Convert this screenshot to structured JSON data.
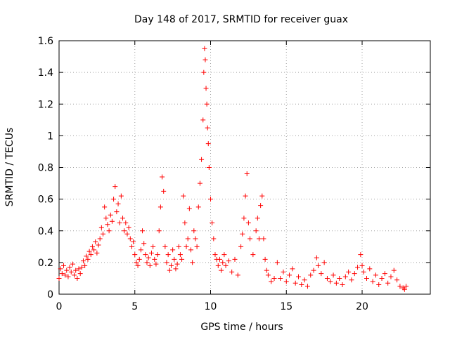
{
  "chart_data": {
    "type": "scatter",
    "title": "Day 148 of 2017, SRMTID for receiver guax",
    "xlabel": "GPS time / hours",
    "ylabel": "SRMTID / TECUs",
    "xlim": [
      0,
      24.5
    ],
    "ylim": [
      0,
      1.6
    ],
    "xticks": [
      0,
      5,
      10,
      15,
      20
    ],
    "xtick_labels": [
      "0",
      "5",
      "10",
      "15",
      "20"
    ],
    "yticks": [
      0,
      0.2,
      0.4,
      0.6,
      0.8,
      1,
      1.2,
      1.4,
      1.6
    ],
    "ytick_labels": [
      "0",
      "0.2",
      "0.4",
      "0.6",
      "0.8",
      "1",
      "1.2",
      "1.4",
      "1.6"
    ],
    "grid": true,
    "marker": "+",
    "color": "#ff0000",
    "series": [
      {
        "name": "SRMTID",
        "points": [
          [
            0.0,
            0.1
          ],
          [
            0.1,
            0.16
          ],
          [
            0.2,
            0.13
          ],
          [
            0.3,
            0.18
          ],
          [
            0.4,
            0.12
          ],
          [
            0.5,
            0.15
          ],
          [
            0.6,
            0.11
          ],
          [
            0.7,
            0.17
          ],
          [
            0.8,
            0.14
          ],
          [
            0.9,
            0.19
          ],
          [
            1.0,
            0.12
          ],
          [
            1.1,
            0.15
          ],
          [
            1.2,
            0.1
          ],
          [
            1.3,
            0.16
          ],
          [
            1.4,
            0.13
          ],
          [
            1.5,
            0.17
          ],
          [
            1.6,
            0.21
          ],
          [
            1.7,
            0.18
          ],
          [
            1.8,
            0.24
          ],
          [
            1.9,
            0.22
          ],
          [
            2.0,
            0.27
          ],
          [
            2.1,
            0.25
          ],
          [
            2.2,
            0.3
          ],
          [
            2.3,
            0.28
          ],
          [
            2.4,
            0.33
          ],
          [
            2.5,
            0.26
          ],
          [
            2.6,
            0.31
          ],
          [
            2.7,
            0.35
          ],
          [
            2.8,
            0.42
          ],
          [
            2.9,
            0.38
          ],
          [
            3.0,
            0.55
          ],
          [
            3.1,
            0.48
          ],
          [
            3.2,
            0.44
          ],
          [
            3.3,
            0.4
          ],
          [
            3.4,
            0.5
          ],
          [
            3.5,
            0.46
          ],
          [
            3.6,
            0.6
          ],
          [
            3.7,
            0.68
          ],
          [
            3.8,
            0.52
          ],
          [
            3.9,
            0.57
          ],
          [
            4.0,
            0.45
          ],
          [
            4.1,
            0.62
          ],
          [
            4.2,
            0.48
          ],
          [
            4.3,
            0.4
          ],
          [
            4.4,
            0.45
          ],
          [
            4.5,
            0.38
          ],
          [
            4.6,
            0.42
          ],
          [
            4.7,
            0.35
          ],
          [
            4.8,
            0.3
          ],
          [
            4.9,
            0.33
          ],
          [
            5.0,
            0.25
          ],
          [
            5.1,
            0.2
          ],
          [
            5.2,
            0.18
          ],
          [
            5.3,
            0.22
          ],
          [
            5.4,
            0.28
          ],
          [
            5.5,
            0.4
          ],
          [
            5.6,
            0.32
          ],
          [
            5.7,
            0.25
          ],
          [
            5.8,
            0.2
          ],
          [
            5.9,
            0.23
          ],
          [
            6.0,
            0.18
          ],
          [
            6.1,
            0.26
          ],
          [
            6.2,
            0.3
          ],
          [
            6.3,
            0.22
          ],
          [
            6.4,
            0.19
          ],
          [
            6.5,
            0.25
          ],
          [
            6.6,
            0.4
          ],
          [
            6.7,
            0.55
          ],
          [
            6.8,
            0.74
          ],
          [
            6.9,
            0.65
          ],
          [
            7.0,
            0.3
          ],
          [
            7.1,
            0.2
          ],
          [
            7.2,
            0.25
          ],
          [
            7.3,
            0.15
          ],
          [
            7.4,
            0.18
          ],
          [
            7.5,
            0.28
          ],
          [
            7.6,
            0.22
          ],
          [
            7.7,
            0.16
          ],
          [
            7.8,
            0.19
          ],
          [
            7.9,
            0.3
          ],
          [
            8.0,
            0.25
          ],
          [
            8.1,
            0.22
          ],
          [
            8.2,
            0.62
          ],
          [
            8.3,
            0.45
          ],
          [
            8.4,
            0.3
          ],
          [
            8.5,
            0.35
          ],
          [
            8.6,
            0.54
          ],
          [
            8.7,
            0.28
          ],
          [
            8.8,
            0.2
          ],
          [
            8.9,
            0.4
          ],
          [
            9.0,
            0.35
          ],
          [
            9.1,
            0.3
          ],
          [
            9.2,
            0.55
          ],
          [
            9.3,
            0.7
          ],
          [
            9.4,
            0.85
          ],
          [
            9.5,
            1.1
          ],
          [
            9.55,
            1.4
          ],
          [
            9.6,
            1.55
          ],
          [
            9.65,
            1.48
          ],
          [
            9.7,
            1.3
          ],
          [
            9.75,
            1.2
          ],
          [
            9.8,
            1.05
          ],
          [
            9.85,
            0.95
          ],
          [
            9.9,
            0.8
          ],
          [
            10.0,
            0.6
          ],
          [
            10.1,
            0.45
          ],
          [
            10.2,
            0.35
          ],
          [
            10.3,
            0.25
          ],
          [
            10.4,
            0.22
          ],
          [
            10.5,
            0.18
          ],
          [
            10.6,
            0.22
          ],
          [
            10.7,
            0.15
          ],
          [
            10.8,
            0.2
          ],
          [
            10.9,
            0.25
          ],
          [
            11.0,
            0.18
          ],
          [
            11.2,
            0.21
          ],
          [
            11.4,
            0.14
          ],
          [
            11.6,
            0.22
          ],
          [
            11.8,
            0.12
          ],
          [
            12.0,
            0.3
          ],
          [
            12.1,
            0.38
          ],
          [
            12.2,
            0.48
          ],
          [
            12.3,
            0.62
          ],
          [
            12.4,
            0.76
          ],
          [
            12.5,
            0.45
          ],
          [
            12.6,
            0.35
          ],
          [
            12.8,
            0.25
          ],
          [
            13.0,
            0.4
          ],
          [
            13.1,
            0.48
          ],
          [
            13.2,
            0.35
          ],
          [
            13.3,
            0.56
          ],
          [
            13.4,
            0.62
          ],
          [
            13.5,
            0.35
          ],
          [
            13.6,
            0.22
          ],
          [
            13.7,
            0.15
          ],
          [
            13.8,
            0.12
          ],
          [
            14.0,
            0.08
          ],
          [
            14.2,
            0.1
          ],
          [
            14.4,
            0.2
          ],
          [
            14.6,
            0.1
          ],
          [
            14.8,
            0.14
          ],
          [
            15.0,
            0.08
          ],
          [
            15.2,
            0.12
          ],
          [
            15.4,
            0.16
          ],
          [
            15.6,
            0.07
          ],
          [
            15.8,
            0.11
          ],
          [
            16.0,
            0.06
          ],
          [
            16.2,
            0.09
          ],
          [
            16.4,
            0.05
          ],
          [
            16.6,
            0.12
          ],
          [
            16.8,
            0.15
          ],
          [
            17.0,
            0.23
          ],
          [
            17.1,
            0.18
          ],
          [
            17.3,
            0.13
          ],
          [
            17.5,
            0.2
          ],
          [
            17.7,
            0.1
          ],
          [
            17.9,
            0.08
          ],
          [
            18.1,
            0.12
          ],
          [
            18.3,
            0.07
          ],
          [
            18.5,
            0.1
          ],
          [
            18.7,
            0.06
          ],
          [
            18.9,
            0.11
          ],
          [
            19.1,
            0.14
          ],
          [
            19.3,
            0.09
          ],
          [
            19.5,
            0.13
          ],
          [
            19.7,
            0.17
          ],
          [
            19.9,
            0.25
          ],
          [
            20.0,
            0.18
          ],
          [
            20.1,
            0.14
          ],
          [
            20.3,
            0.1
          ],
          [
            20.5,
            0.16
          ],
          [
            20.7,
            0.08
          ],
          [
            20.9,
            0.12
          ],
          [
            21.1,
            0.06
          ],
          [
            21.3,
            0.1
          ],
          [
            21.5,
            0.13
          ],
          [
            21.7,
            0.07
          ],
          [
            21.9,
            0.11
          ],
          [
            22.1,
            0.15
          ],
          [
            22.3,
            0.09
          ],
          [
            22.5,
            0.05
          ],
          [
            22.7,
            0.04
          ],
          [
            22.8,
            0.03
          ],
          [
            22.9,
            0.05
          ]
        ]
      }
    ]
  }
}
